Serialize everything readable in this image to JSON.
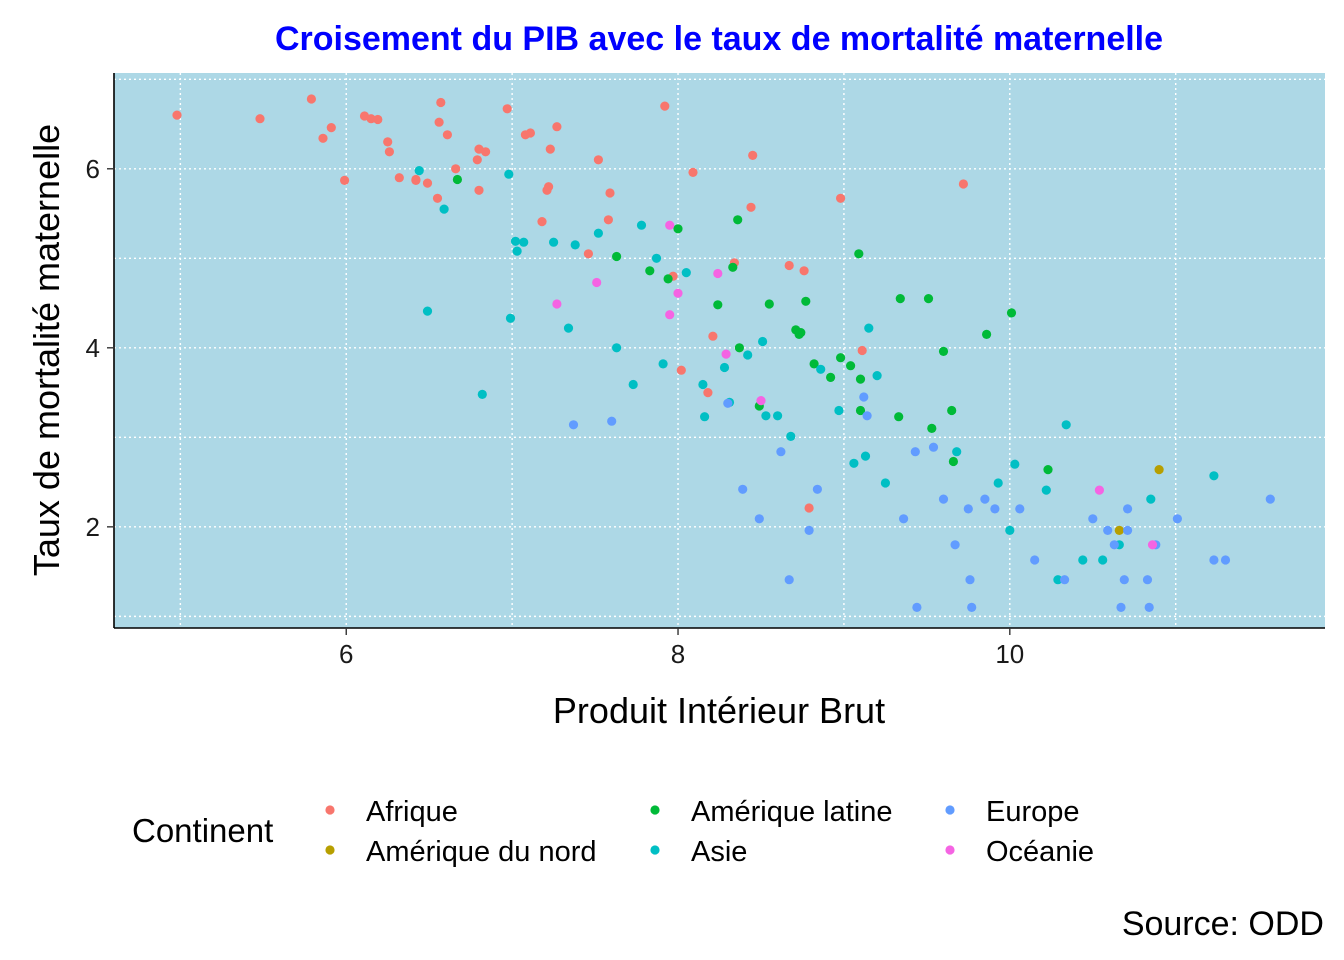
{
  "chart_data": {
    "type": "scatter",
    "title": "Croisement du PIB avec le taux de mortalité maternelle",
    "title_color": "#0000FF",
    "xlabel": "Produit Intérieur Brut",
    "ylabel": "Taux de mortalité maternelle",
    "caption": "Source: ODD",
    "xlim": [
      4.6,
      11.9
    ],
    "ylim": [
      0.87,
      7.07
    ],
    "x_ticks": [
      6,
      8,
      10
    ],
    "y_ticks": [
      2,
      4,
      6
    ],
    "grid": true,
    "panel_color": "#ADD8E6",
    "legend": {
      "title": "Continent",
      "position": "bottom"
    },
    "series": [
      {
        "name": "Afrique",
        "color": "#F8766D",
        "points": [
          [
            4.98,
            6.6
          ],
          [
            5.48,
            6.56
          ],
          [
            5.79,
            6.78
          ],
          [
            5.86,
            6.34
          ],
          [
            5.91,
            6.46
          ],
          [
            5.99,
            5.87
          ],
          [
            6.11,
            6.59
          ],
          [
            6.15,
            6.56
          ],
          [
            6.19,
            6.55
          ],
          [
            6.25,
            6.3
          ],
          [
            6.26,
            6.19
          ],
          [
            6.32,
            5.9
          ],
          [
            6.42,
            5.87
          ],
          [
            6.42,
            5.88
          ],
          [
            6.49,
            5.84
          ],
          [
            6.55,
            5.67
          ],
          [
            6.56,
            6.52
          ],
          [
            6.57,
            6.74
          ],
          [
            6.61,
            6.38
          ],
          [
            6.66,
            6.0
          ],
          [
            6.79,
            6.1
          ],
          [
            6.8,
            5.76
          ],
          [
            6.8,
            6.22
          ],
          [
            6.84,
            6.19
          ],
          [
            6.97,
            6.67
          ],
          [
            7.08,
            6.38
          ],
          [
            7.11,
            6.4
          ],
          [
            7.18,
            5.41
          ],
          [
            7.21,
            5.76
          ],
          [
            7.22,
            5.8
          ],
          [
            7.23,
            6.22
          ],
          [
            7.27,
            6.47
          ],
          [
            7.46,
            5.05
          ],
          [
            7.52,
            6.1
          ],
          [
            7.58,
            5.43
          ],
          [
            7.59,
            5.73
          ],
          [
            7.92,
            6.7
          ],
          [
            7.97,
            4.8
          ],
          [
            8.02,
            3.75
          ],
          [
            8.09,
            5.96
          ],
          [
            8.18,
            3.5
          ],
          [
            8.21,
            4.13
          ],
          [
            8.34,
            4.95
          ],
          [
            8.44,
            5.57
          ],
          [
            8.45,
            6.15
          ],
          [
            8.67,
            4.92
          ],
          [
            8.76,
            4.86
          ],
          [
            8.79,
            2.21
          ],
          [
            8.98,
            5.67
          ],
          [
            9.11,
            3.97
          ],
          [
            9.72,
            5.83
          ]
        ]
      },
      {
        "name": "Amérique du nord",
        "color": "#B79F00",
        "points": [
          [
            10.66,
            1.96
          ],
          [
            10.9,
            2.64
          ]
        ]
      },
      {
        "name": "Amérique latine",
        "color": "#00BA38",
        "points": [
          [
            6.67,
            5.88
          ],
          [
            7.63,
            5.02
          ],
          [
            7.83,
            4.86
          ],
          [
            7.94,
            4.77
          ],
          [
            8.0,
            5.33
          ],
          [
            8.24,
            4.48
          ],
          [
            8.33,
            4.9
          ],
          [
            8.36,
            5.43
          ],
          [
            8.37,
            4.0
          ],
          [
            8.49,
            3.35
          ],
          [
            8.55,
            4.49
          ],
          [
            8.71,
            4.2
          ],
          [
            8.73,
            4.15
          ],
          [
            8.74,
            4.17
          ],
          [
            8.77,
            4.52
          ],
          [
            8.82,
            3.82
          ],
          [
            8.92,
            3.67
          ],
          [
            8.98,
            3.89
          ],
          [
            9.04,
            3.8
          ],
          [
            9.09,
            5.05
          ],
          [
            9.1,
            3.3
          ],
          [
            9.1,
            3.65
          ],
          [
            9.33,
            3.23
          ],
          [
            9.34,
            4.55
          ],
          [
            9.51,
            4.55
          ],
          [
            9.53,
            3.1
          ],
          [
            9.6,
            3.96
          ],
          [
            9.65,
            3.3
          ],
          [
            9.66,
            2.73
          ],
          [
            9.86,
            4.15
          ],
          [
            10.01,
            4.39
          ],
          [
            10.23,
            2.64
          ]
        ]
      },
      {
        "name": "Asie",
        "color": "#00BFC4",
        "points": [
          [
            6.44,
            5.98
          ],
          [
            6.49,
            4.41
          ],
          [
            6.59,
            5.55
          ],
          [
            6.82,
            3.48
          ],
          [
            6.98,
            5.94
          ],
          [
            6.99,
            4.33
          ],
          [
            7.02,
            5.19
          ],
          [
            7.03,
            5.08
          ],
          [
            7.07,
            5.18
          ],
          [
            7.25,
            5.18
          ],
          [
            7.34,
            4.22
          ],
          [
            7.38,
            5.15
          ],
          [
            7.52,
            5.28
          ],
          [
            7.63,
            4.0
          ],
          [
            7.73,
            3.59
          ],
          [
            7.78,
            5.37
          ],
          [
            7.87,
            5.0
          ],
          [
            7.91,
            3.82
          ],
          [
            8.05,
            4.84
          ],
          [
            8.15,
            3.59
          ],
          [
            8.16,
            3.23
          ],
          [
            8.28,
            3.78
          ],
          [
            8.31,
            3.39
          ],
          [
            8.42,
            3.92
          ],
          [
            8.51,
            4.07
          ],
          [
            8.53,
            3.24
          ],
          [
            8.6,
            3.24
          ],
          [
            8.68,
            3.01
          ],
          [
            8.86,
            3.76
          ],
          [
            8.97,
            3.3
          ],
          [
            9.06,
            2.71
          ],
          [
            9.13,
            2.79
          ],
          [
            9.15,
            4.22
          ],
          [
            9.2,
            3.69
          ],
          [
            9.25,
            2.49
          ],
          [
            9.68,
            2.84
          ],
          [
            9.93,
            2.49
          ],
          [
            10.0,
            1.96
          ],
          [
            10.03,
            2.7
          ],
          [
            10.22,
            2.41
          ],
          [
            10.29,
            1.41
          ],
          [
            10.34,
            3.14
          ],
          [
            10.44,
            1.63
          ],
          [
            10.56,
            1.63
          ],
          [
            10.66,
            1.8
          ],
          [
            10.85,
            2.31
          ],
          [
            11.23,
            2.57
          ]
        ]
      },
      {
        "name": "Europe",
        "color": "#619CFF",
        "points": [
          [
            7.37,
            3.14
          ],
          [
            7.6,
            3.18
          ],
          [
            8.3,
            3.38
          ],
          [
            8.39,
            2.42
          ],
          [
            8.49,
            2.09
          ],
          [
            8.62,
            2.84
          ],
          [
            8.67,
            1.41
          ],
          [
            8.79,
            1.96
          ],
          [
            8.84,
            2.42
          ],
          [
            9.12,
            3.45
          ],
          [
            9.14,
            3.24
          ],
          [
            9.36,
            2.09
          ],
          [
            9.43,
            2.84
          ],
          [
            9.54,
            2.89
          ],
          [
            9.6,
            2.31
          ],
          [
            9.67,
            1.8
          ],
          [
            9.75,
            2.2
          ],
          [
            9.76,
            1.41
          ],
          [
            9.77,
            1.1
          ],
          [
            9.85,
            2.31
          ],
          [
            9.91,
            2.2
          ],
          [
            10.06,
            2.2
          ],
          [
            10.15,
            1.63
          ],
          [
            10.33,
            1.41
          ],
          [
            10.5,
            2.09
          ],
          [
            10.59,
            1.96
          ],
          [
            10.63,
            1.8
          ],
          [
            10.67,
            1.1
          ],
          [
            10.69,
            1.41
          ],
          [
            10.71,
            2.2
          ],
          [
            10.71,
            1.96
          ],
          [
            10.83,
            1.41
          ],
          [
            10.84,
            1.1
          ],
          [
            10.88,
            1.8
          ],
          [
            11.01,
            2.09
          ],
          [
            11.23,
            1.63
          ],
          [
            11.3,
            1.63
          ],
          [
            11.57,
            2.31
          ],
          [
            9.44,
            1.1
          ]
        ]
      },
      {
        "name": "Océanie",
        "color": "#F564E3",
        "points": [
          [
            7.27,
            4.49
          ],
          [
            7.51,
            4.73
          ],
          [
            7.95,
            4.37
          ],
          [
            7.95,
            5.37
          ],
          [
            8.0,
            4.61
          ],
          [
            8.24,
            4.83
          ],
          [
            8.29,
            3.93
          ],
          [
            8.5,
            3.41
          ],
          [
            10.54,
            2.41
          ],
          [
            10.86,
            1.8
          ]
        ]
      }
    ]
  }
}
